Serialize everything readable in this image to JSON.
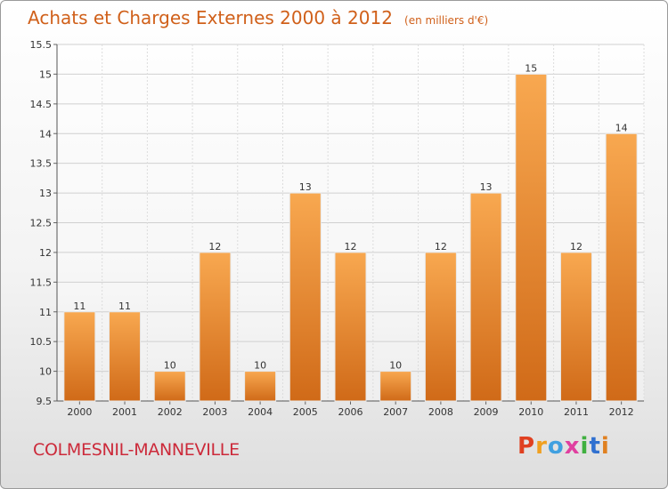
{
  "chart_data": {
    "type": "bar",
    "title": "Achats et Charges Externes 2000 à 2012",
    "subtitle": "(en milliers d'€)",
    "categories": [
      "2000",
      "2001",
      "2002",
      "2003",
      "2004",
      "2005",
      "2006",
      "2007",
      "2008",
      "2009",
      "2010",
      "2011",
      "2012"
    ],
    "values": [
      11,
      11,
      10,
      12,
      10,
      13,
      12,
      10,
      12,
      13,
      15,
      12,
      14
    ],
    "ylim": [
      9.5,
      15.5
    ],
    "yticks": [
      "9.5",
      "10",
      "10.5",
      "11",
      "11.5",
      "12",
      "12.5",
      "13",
      "13.5",
      "14",
      "14.5",
      "15",
      "15.5"
    ],
    "grid": true,
    "bar_color_top": "#f8a850",
    "bar_color_bottom": "#d06a18"
  },
  "footer": {
    "town": "COLMESNIL-MANNEVILLE",
    "logo_letters": [
      "P",
      "r",
      "o",
      "x",
      "i",
      "t",
      "i"
    ]
  }
}
